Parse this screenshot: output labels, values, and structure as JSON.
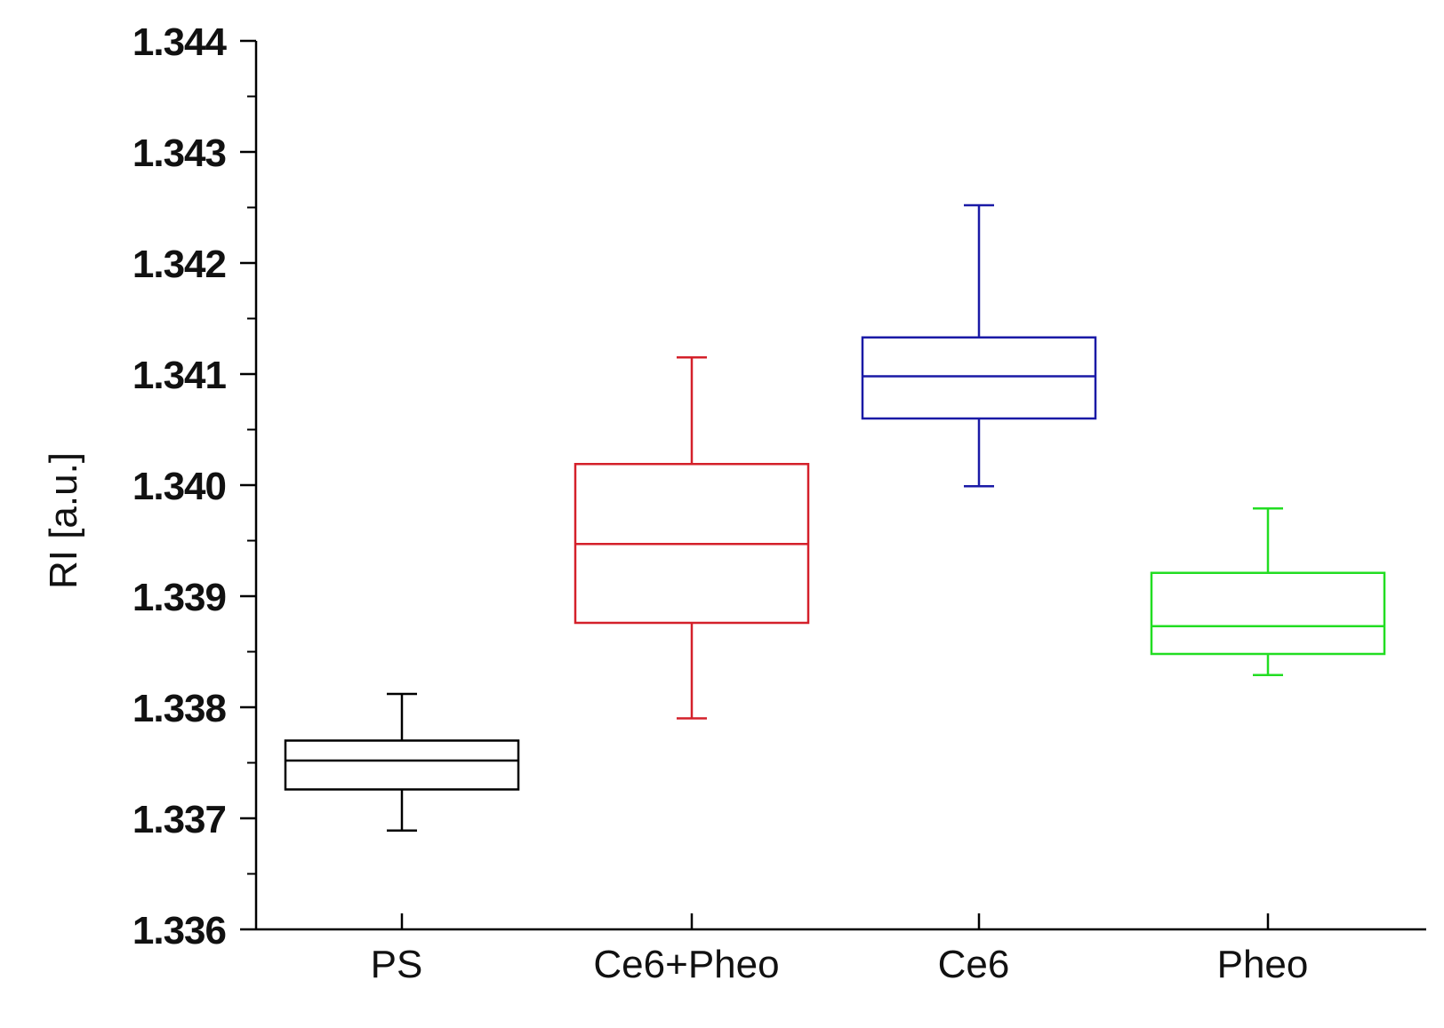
{
  "chart_data": {
    "type": "box",
    "title": "",
    "xlabel": "",
    "ylabel": "RI [a.u.]",
    "ylim": [
      1.336,
      1.344
    ],
    "yticks": [
      "1.336",
      "1.337",
      "1.338",
      "1.339",
      "1.340",
      "1.341",
      "1.342",
      "1.343",
      "1.344"
    ],
    "ytick_values": [
      1.336,
      1.337,
      1.338,
      1.339,
      1.34,
      1.341,
      1.342,
      1.343,
      1.344
    ],
    "categories": [
      "PS",
      "Ce6+Pheo",
      "Ce6",
      "Pheo"
    ],
    "series": [
      {
        "name": "PS",
        "color": "#000000",
        "whisker_low": 1.33689,
        "q1": 1.33726,
        "median": 1.33752,
        "q3": 1.3377,
        "whisker_high": 1.33812
      },
      {
        "name": "Ce6+Pheo",
        "color": "#d4202a",
        "whisker_low": 1.3379,
        "q1": 1.33876,
        "median": 1.33947,
        "q3": 1.34019,
        "whisker_high": 1.34115
      },
      {
        "name": "Ce6",
        "color": "#1a1aa6",
        "whisker_low": 1.33999,
        "q1": 1.3406,
        "median": 1.34098,
        "q3": 1.34133,
        "whisker_high": 1.34252
      },
      {
        "name": "Pheo",
        "color": "#22dd22",
        "whisker_low": 1.33829,
        "q1": 1.33848,
        "median": 1.33873,
        "q3": 1.33921,
        "whisker_high": 1.33979
      }
    ],
    "grid": false,
    "legend": "none"
  }
}
